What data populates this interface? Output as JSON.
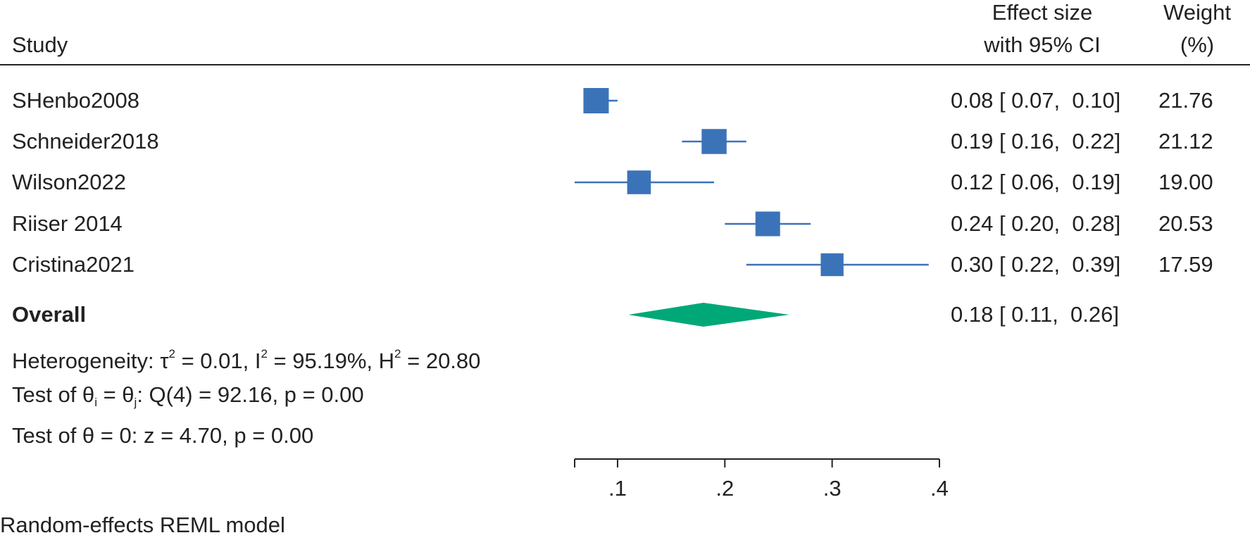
{
  "header": {
    "study_label": "Study",
    "effect_label_line1": "Effect size",
    "effect_label_line2": "with 95% CI",
    "weight_label_line1": "Weight",
    "weight_label_line2": "(%)"
  },
  "stats": {
    "heterogeneity_prefix": "Heterogeneity: τ",
    "tau_sup": "2",
    "tau_value": " = 0.01, I",
    "i_sup": "2",
    "i_value": " = 95.19%, H",
    "h_sup": "2",
    "h_value": " = 20.80",
    "test1_prefix": "Test of θ",
    "test1_sub_i": "i",
    "test1_mid": " = θ",
    "test1_sub_j": "j",
    "test1_rest": ": Q(4) = 92.16, p = 0.00",
    "test2": "Test of θ = 0: z = 4.70, p = 0.00"
  },
  "footer": {
    "model_note": "Random-effects REML model"
  },
  "colors": {
    "study_marker": "#3B73B9",
    "overall_diamond": "#00A878",
    "text": "#222222"
  },
  "chart_data": {
    "type": "forest",
    "xlim": [
      0.06,
      0.4
    ],
    "xticks": [
      0.1,
      0.2,
      0.3,
      0.4
    ],
    "xtick_labels": [
      ".1",
      ".2",
      ".3",
      ".4"
    ],
    "studies": [
      {
        "name": "SHenbo2008",
        "effect": 0.08,
        "lower": 0.07,
        "upper": 0.1,
        "ci_text": "0.08 [ 0.07,  0.10]",
        "weight": 21.76,
        "weight_text": "21.76"
      },
      {
        "name": "Schneider2018",
        "effect": 0.19,
        "lower": 0.16,
        "upper": 0.22,
        "ci_text": "0.19 [ 0.16,  0.22]",
        "weight": 21.12,
        "weight_text": "21.12"
      },
      {
        "name": "Wilson2022",
        "effect": 0.12,
        "lower": 0.06,
        "upper": 0.19,
        "ci_text": "0.12 [ 0.06,  0.19]",
        "weight": 19.0,
        "weight_text": "19.00"
      },
      {
        "name": "Riiser 2014",
        "effect": 0.24,
        "lower": 0.2,
        "upper": 0.28,
        "ci_text": "0.24 [ 0.20,  0.28]",
        "weight": 20.53,
        "weight_text": "20.53"
      },
      {
        "name": "Cristina2021",
        "effect": 0.3,
        "lower": 0.22,
        "upper": 0.39,
        "ci_text": "0.30 [ 0.22,  0.39]",
        "weight": 17.59,
        "weight_text": "17.59"
      }
    ],
    "overall": {
      "name": "Overall",
      "effect": 0.18,
      "lower": 0.11,
      "upper": 0.26,
      "ci_text": "0.18 [ 0.11,  0.26]"
    }
  }
}
